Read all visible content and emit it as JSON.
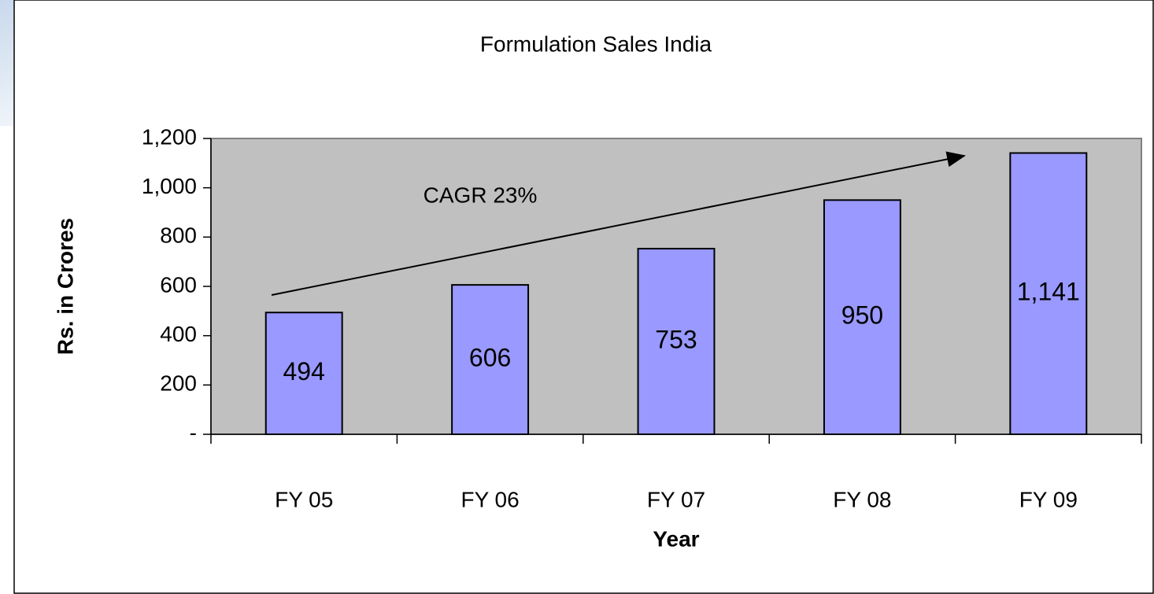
{
  "chart_data": {
    "type": "bar",
    "title": "Formulation Sales India",
    "annotation": "CAGR 23%",
    "x_label": "Year",
    "y_label": "Rs. in Crores",
    "categories": [
      "FY 05",
      "FY 06",
      "FY 07",
      "FY 08",
      "FY 09"
    ],
    "values": [
      494,
      606,
      753,
      950,
      1141
    ],
    "value_labels": [
      "494",
      "606",
      "753",
      "950",
      "1,141"
    ],
    "color": "#9999ff",
    "ylim": [
      0,
      1200
    ],
    "yticks": [
      {
        "value": 0,
        "label": "-"
      },
      200,
      400,
      600,
      800,
      {
        "value": 1000,
        "label": "1,000"
      },
      {
        "value": 1200,
        "label": "1,200"
      }
    ]
  }
}
